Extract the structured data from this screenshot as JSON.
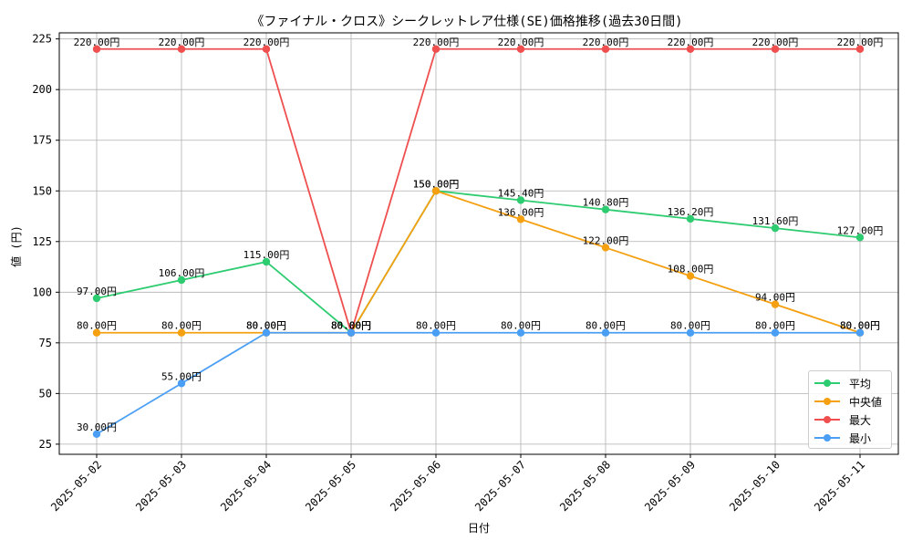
{
  "chart_data": {
    "type": "line",
    "title": "《ファイナル・クロス》シークレットレア仕様(SE)価格推移(過去30日間)",
    "xlabel": "日付",
    "ylabel": "値 (円)",
    "categories": [
      "2025-05-02",
      "2025-05-03",
      "2025-05-04",
      "2025-05-05",
      "2025-05-06",
      "2025-05-07",
      "2025-05-08",
      "2025-05-09",
      "2025-05-10",
      "2025-05-11"
    ],
    "ylim": [
      20,
      228
    ],
    "yticks": [
      25,
      50,
      75,
      100,
      125,
      150,
      175,
      200,
      225
    ],
    "grid": true,
    "legend_position": "lower-right",
    "value_suffix": "円",
    "series": [
      {
        "name": "平均",
        "color": "#2ecc71",
        "values": [
          97.0,
          106.0,
          115.0,
          80.0,
          150.0,
          145.4,
          140.8,
          136.2,
          131.6,
          127.0
        ]
      },
      {
        "name": "中央値",
        "color": "#f5a011",
        "values": [
          80.0,
          80.0,
          80.0,
          80.0,
          150.0,
          136.0,
          122.0,
          108.0,
          94.0,
          80.0
        ]
      },
      {
        "name": "最大",
        "color": "#ef4f4f",
        "values": [
          220.0,
          220.0,
          220.0,
          80.0,
          220.0,
          220.0,
          220.0,
          220.0,
          220.0,
          220.0
        ]
      },
      {
        "name": "最小",
        "color": "#4a9ff5",
        "values": [
          30.0,
          55.0,
          80.0,
          80.0,
          80.0,
          80.0,
          80.0,
          80.0,
          80.0,
          80.0
        ]
      }
    ]
  }
}
